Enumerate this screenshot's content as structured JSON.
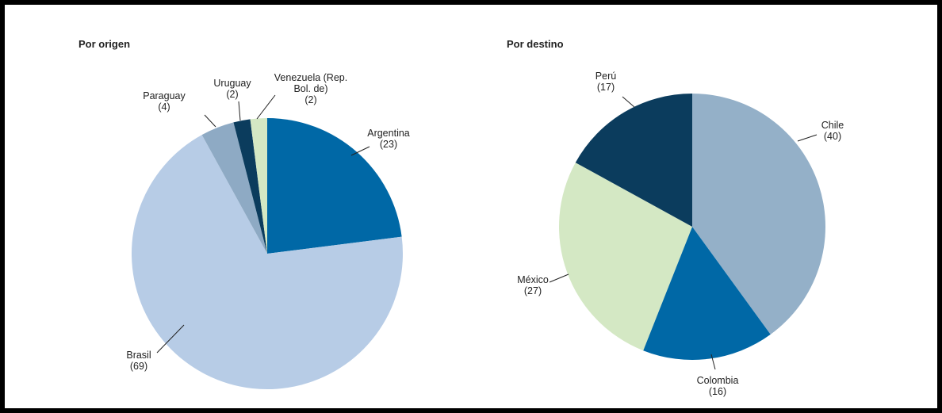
{
  "chart_data": [
    {
      "type": "pie",
      "title": "Por origen",
      "categories": [
        "Argentina",
        "Brasil",
        "Paraguay",
        "Uruguay",
        "Venezuela (Rep. Bol. de)"
      ],
      "values": [
        23,
        69,
        4,
        2,
        2
      ],
      "value_labels": [
        "(23)",
        "(69)",
        "(4)",
        "(2)",
        "(2)"
      ],
      "colors": [
        "#0068a6",
        "#b7cce6",
        "#8eaac4",
        "#0b3c5d",
        "#d4e8c4"
      ]
    },
    {
      "type": "pie",
      "title": "Por destino",
      "categories": [
        "Chile",
        "Colombia",
        "México",
        "Perú"
      ],
      "values": [
        40,
        16,
        27,
        17
      ],
      "value_labels": [
        "(40)",
        "(16)",
        "(27)",
        "(17)"
      ],
      "colors": [
        "#94b0c8",
        "#0068a6",
        "#d4e8c4",
        "#0b3c5d"
      ]
    }
  ]
}
